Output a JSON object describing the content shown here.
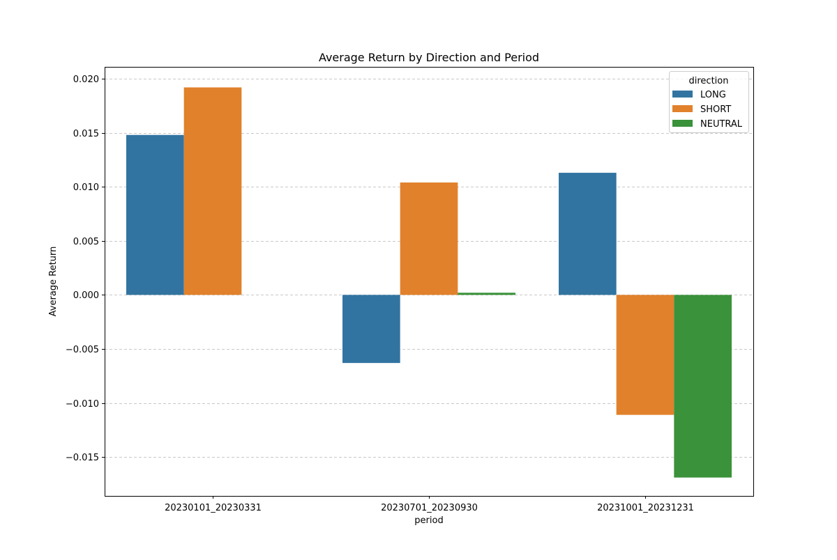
{
  "chart_data": {
    "type": "bar",
    "title": "Average Return by Direction and Period",
    "xlabel": "period",
    "ylabel": "Average Return",
    "categories": [
      "20230101_20230331",
      "20230701_20230930",
      "20231001_20231231"
    ],
    "series": [
      {
        "name": "LONG",
        "color": "#3274a1",
        "values": [
          0.0148,
          -0.0063,
          0.0113
        ]
      },
      {
        "name": "SHORT",
        "color": "#e1812c",
        "values": [
          0.0192,
          0.0104,
          -0.0111
        ]
      },
      {
        "name": "NEUTRAL",
        "color": "#3a923a",
        "values": [
          null,
          0.0002,
          -0.0169
        ]
      }
    ],
    "ylim": [
      -0.0186,
      0.0211
    ],
    "yticks": [
      -0.015,
      -0.01,
      -0.005,
      0.0,
      0.005,
      0.01,
      0.015,
      0.02
    ],
    "ytick_labels": [
      "−0.015",
      "−0.010",
      "−0.005",
      "0.000",
      "0.005",
      "0.010",
      "0.015",
      "0.020"
    ],
    "grid": {
      "y": true,
      "style": "dashed"
    },
    "legend": {
      "title": "direction",
      "position": "top-right"
    }
  }
}
